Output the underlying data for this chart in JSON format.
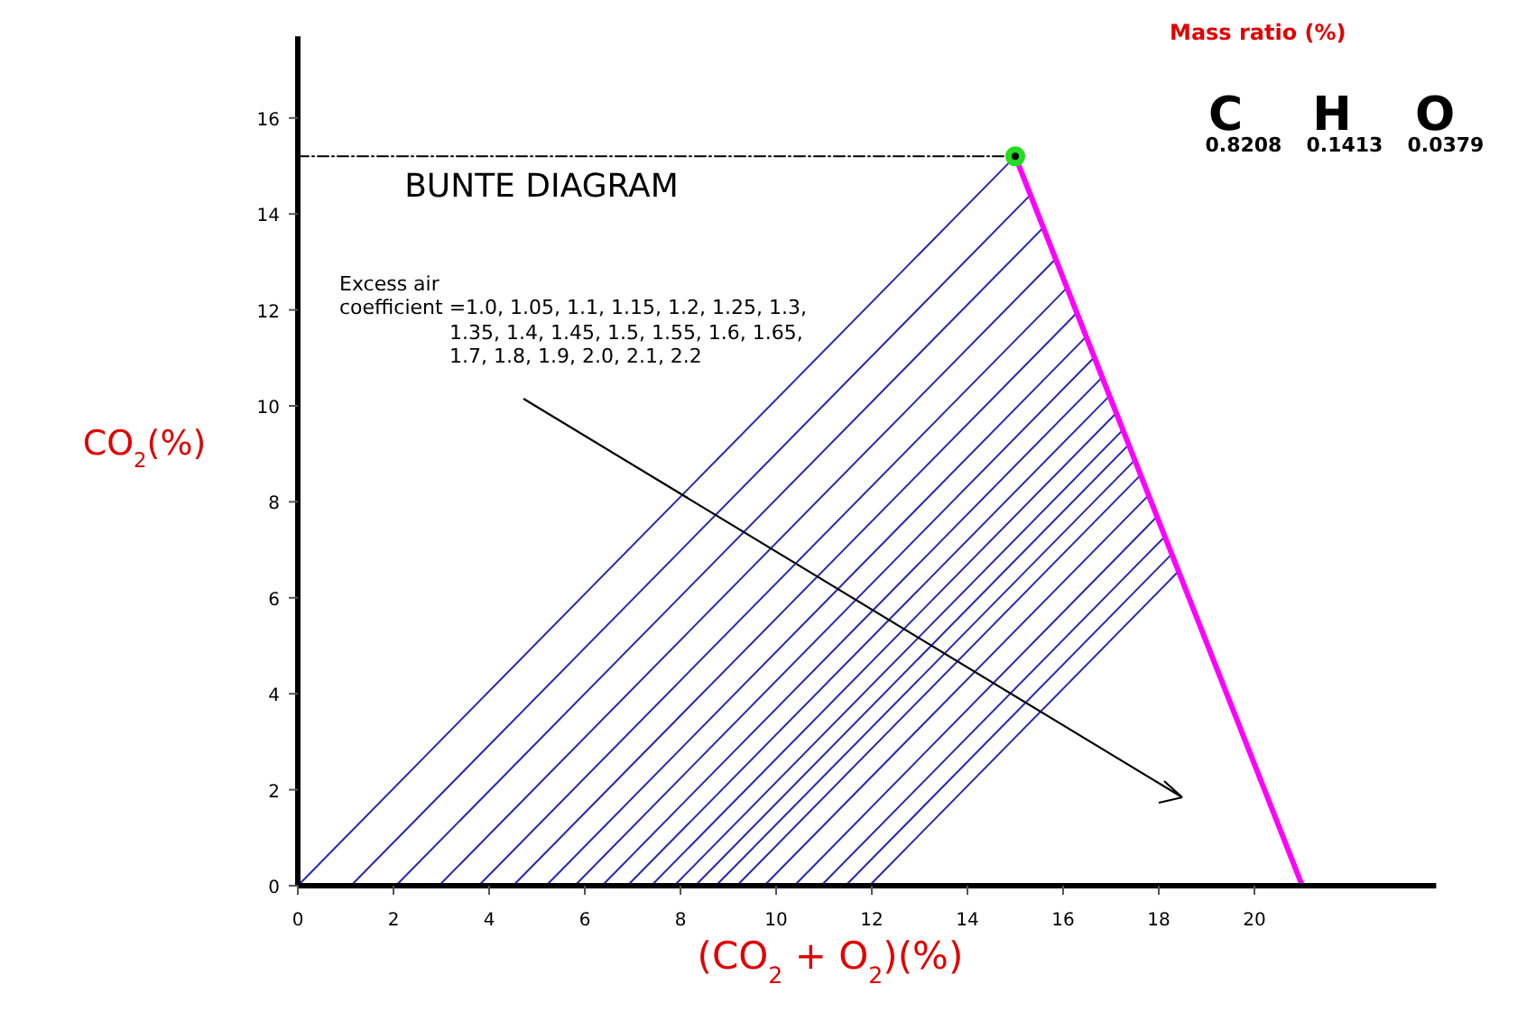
{
  "chart_data": {
    "type": "line",
    "title": "BUNTE DIAGRAM",
    "xlabel": "(CO$_{2}$ + O$_{2}$)(%)",
    "ylabel": "CO$_{2}$(%)",
    "xlim": [
      0,
      23.8
    ],
    "ylim": [
      0,
      17.7
    ],
    "xticks": [
      0,
      2,
      4,
      6,
      8,
      10,
      12,
      14,
      16,
      18,
      20
    ],
    "yticks": [
      0,
      2,
      4,
      6,
      8,
      10,
      12,
      14,
      16
    ],
    "grid": false,
    "annotations": [
      "Excess air",
      "coefficient =1.0, 1.05, 1.1, 1.15, 1.2, 1.25, 1.3,",
      "1.35, 1.4, 1.45, 1.5, 1.55, 1.6, 1.65,",
      "1.7, 1.8, 1.9, 2.0, 2.1, 2.2",
      "Mass ratio (%)",
      "C",
      "H",
      "O",
      "0.8208",
      "0.1413",
      "0.0379"
    ],
    "series": [
      {
        "color": "#2828b4",
        "x": [
          0,
          15.0
        ],
        "values": [
          0,
          15.2
        ]
      },
      {
        "color": "#2828b4",
        "x": [
          1.11,
          15.32
        ],
        "values": [
          0,
          14.4
        ]
      },
      {
        "color": "#2828b4",
        "x": [
          2.05,
          15.59
        ],
        "values": [
          0,
          13.72
        ]
      },
      {
        "color": "#2828b4",
        "x": [
          2.95,
          15.84
        ],
        "values": [
          0,
          13.06
        ]
      },
      {
        "color": "#2828b4",
        "x": [
          3.78,
          16.08
        ],
        "values": [
          0,
          12.46
        ]
      },
      {
        "color": "#2828b4",
        "x": [
          4.5,
          16.29
        ],
        "values": [
          0,
          11.94
        ]
      },
      {
        "color": "#2828b4",
        "x": [
          5.19,
          16.48
        ],
        "values": [
          0,
          11.44
        ]
      },
      {
        "color": "#2828b4",
        "x": [
          5.79,
          16.65
        ],
        "values": [
          0,
          11.01
        ]
      },
      {
        "color": "#2828b4",
        "x": [
          6.36,
          16.82
        ],
        "values": [
          0,
          10.6
        ]
      },
      {
        "color": "#2828b4",
        "x": [
          6.89,
          16.97
        ],
        "values": [
          0,
          10.21
        ]
      },
      {
        "color": "#2828b4",
        "x": [
          7.39,
          17.11
        ],
        "values": [
          0,
          9.85
        ]
      },
      {
        "color": "#2828b4",
        "x": [
          7.87,
          17.25
        ],
        "values": [
          0,
          9.5
        ]
      },
      {
        "color": "#2828b4",
        "x": [
          8.31,
          17.37
        ],
        "values": [
          0,
          9.19
        ]
      },
      {
        "color": "#2828b4",
        "x": [
          8.74,
          17.5
        ],
        "values": [
          0,
          8.87
        ]
      },
      {
        "color": "#2828b4",
        "x": [
          9.18,
          17.62
        ],
        "values": [
          0,
          8.56
        ]
      },
      {
        "color": "#2828b4",
        "x": [
          9.75,
          17.79
        ],
        "values": [
          0,
          8.14
        ]
      },
      {
        "color": "#2828b4",
        "x": [
          10.38,
          17.96
        ],
        "values": [
          0,
          7.69
        ]
      },
      {
        "color": "#2828b4",
        "x": [
          10.94,
          18.13
        ],
        "values": [
          0,
          7.28
        ]
      },
      {
        "color": "#2828b4",
        "x": [
          11.45,
          18.27
        ],
        "values": [
          0,
          6.91
        ]
      },
      {
        "color": "#2828b4",
        "x": [
          11.95,
          18.41
        ],
        "values": [
          0,
          6.55
        ]
      },
      {
        "color": "#ff00ff",
        "x": [
          15.0,
          21.0
        ],
        "values": [
          15.2,
          0
        ]
      },
      {
        "color": "#000000",
        "x": [
          0,
          15.0
        ],
        "values": [
          15.2,
          15.2
        ],
        "line_style": "dashed"
      },
      {
        "type": "scatter",
        "color": "#22dd22",
        "marker": "circle",
        "x": [
          15.0
        ],
        "values": [
          15.2
        ]
      }
    ]
  }
}
